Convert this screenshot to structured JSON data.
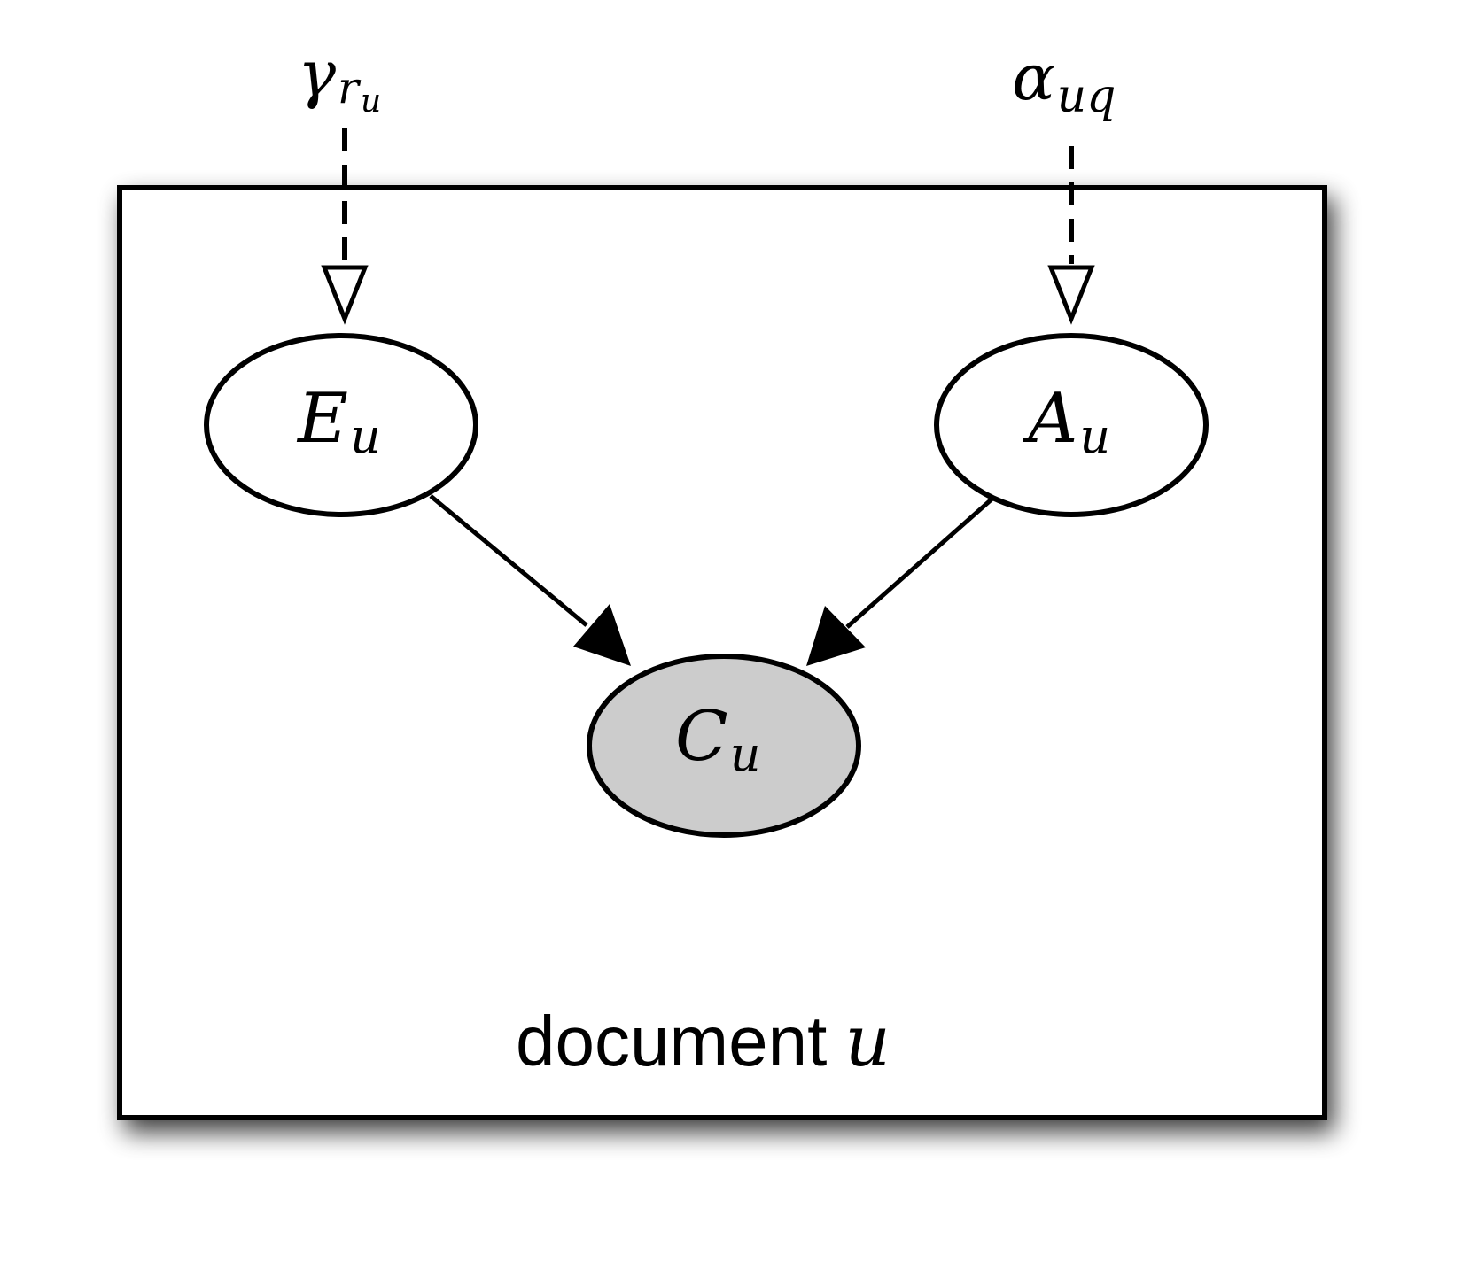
{
  "plate": {
    "label_text": "document",
    "label_var": "u"
  },
  "nodes": {
    "E": {
      "main": "E",
      "sub": "u",
      "observed": false
    },
    "A": {
      "main": "A",
      "sub": "u",
      "observed": false
    },
    "C": {
      "main": "C",
      "sub": "u",
      "observed": true
    }
  },
  "params": {
    "gamma": {
      "main": "γ",
      "sub": "r",
      "subsub": "u"
    },
    "alpha": {
      "main": "α",
      "sub": "uq"
    }
  },
  "colors": {
    "observed_fill": "#cccccc",
    "stroke": "#000000",
    "background": "#ffffff"
  }
}
